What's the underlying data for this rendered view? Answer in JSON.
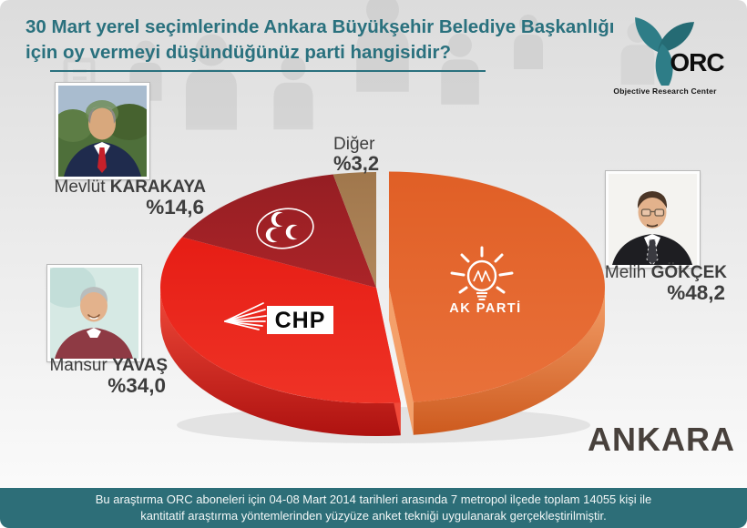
{
  "page": {
    "title_lines": [
      "30 Mart yerel seçimlerinde Ankara Büyükşehir Belediye Başkanlığı",
      "için oy vermeyi düşündüğünüz parti hangisidir?"
    ],
    "city": "ANKARA",
    "title_color": "#2a717e"
  },
  "logo": {
    "text": "ORC",
    "subtitle": "Objective Research Center",
    "accent_color": "#2e7d87"
  },
  "footer": {
    "lines": [
      "Bu araştırma ORC aboneleri için 04-08 Mart 2014 tarihleri arasında 7 metropol ilçede toplam  14055 kişi ile",
      "kantitatif araştırma yöntemlerinden yüzyüze anket tekniği  uygulanarak gerçekleştirilmiştir."
    ],
    "background_color": "#2d6e78"
  },
  "chart_data": {
    "type": "pie",
    "title": "30 Mart yerel seçimlerinde Ankara Büyükşehir Belediye Başkanlığı için oy vermeyi düşündüğünüz parti hangisidir?",
    "unit": "percent",
    "start_angle_deg": 0,
    "clockwise": true,
    "legend_position": "around-pie",
    "slices": [
      {
        "party": "AK Parti",
        "logo_text": "AK PARTİ",
        "candidate_first": "Melih",
        "candidate_last": "GÖKÇEK",
        "value": 48.2,
        "value_label": "%48,2",
        "color": "#e05f26",
        "color_light": "#e9713a",
        "side_color": "#cd5a1e",
        "side_light": "#f4a06a",
        "explode": true
      },
      {
        "party": "CHP",
        "logo_text": "CHP",
        "candidate_first": "Mansur",
        "candidate_last": "YAVAŞ",
        "value": 34.0,
        "value_label": "%34,0",
        "color": "#e61d15",
        "color_light": "#ef3326",
        "side_color": "#ae1210",
        "side_light": "#f14a3a"
      },
      {
        "party": "MHP",
        "candidate_first": "Mevlüt",
        "candidate_last": "KARAKAYA",
        "value": 14.6,
        "value_label": "%14,6",
        "color": "#951e23",
        "color_light": "#ab2428",
        "side_color": "#7c191d",
        "side_light": "#b02a2e"
      },
      {
        "party": "Diğer",
        "value": 3.2,
        "value_label": "%3,2",
        "color": "#a0774c",
        "color_light": "#b1875c",
        "side_color": "#85613c",
        "side_light": "#bb9268"
      }
    ]
  }
}
